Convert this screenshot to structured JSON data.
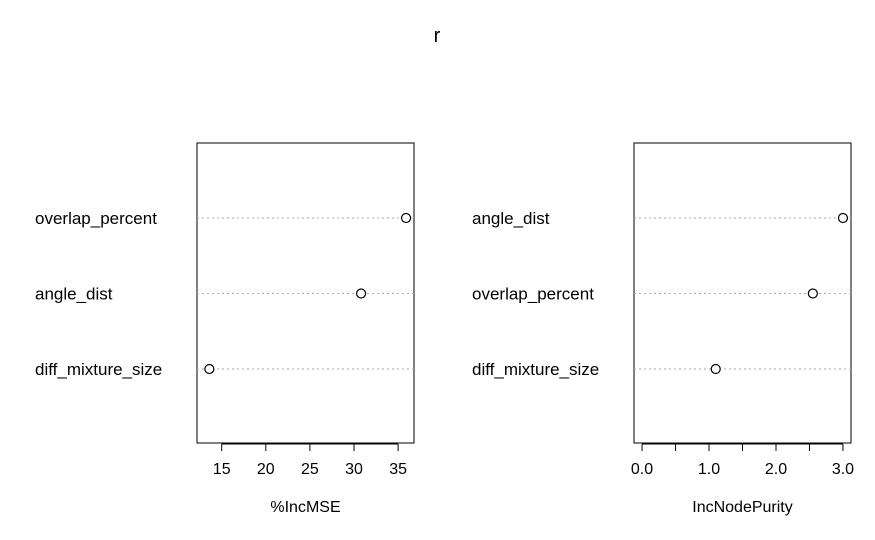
{
  "title": "r",
  "chart_data": [
    {
      "type": "scatter",
      "subtype": "dotchart",
      "xlabel": "%IncMSE",
      "xlim": [
        12.2,
        36.8
      ],
      "ticks": [
        15,
        20,
        25,
        30,
        35
      ],
      "tick_labels": [
        "15",
        "20",
        "25",
        "30",
        "35"
      ],
      "grid": "dotted horizontal lines",
      "points": [
        {
          "category": "overlap_percent",
          "value": 35.9
        },
        {
          "category": "angle_dist",
          "value": 30.8
        },
        {
          "category": "diff_mixture_size",
          "value": 13.6
        }
      ]
    },
    {
      "type": "scatter",
      "subtype": "dotchart",
      "xlabel": "IncNodePurity",
      "xlim": [
        -0.12,
        3.12
      ],
      "ticks": [
        0.0,
        0.5,
        1.0,
        1.5,
        2.0,
        2.5,
        3.0
      ],
      "tick_labels": [
        "0.0",
        "",
        "1.0",
        "",
        "2.0",
        "",
        "3.0"
      ],
      "grid": "dotted horizontal lines",
      "points": [
        {
          "category": "angle_dist",
          "value": 3.0
        },
        {
          "category": "overlap_percent",
          "value": 2.55
        },
        {
          "category": "diff_mixture_size",
          "value": 1.1
        }
      ]
    }
  ]
}
